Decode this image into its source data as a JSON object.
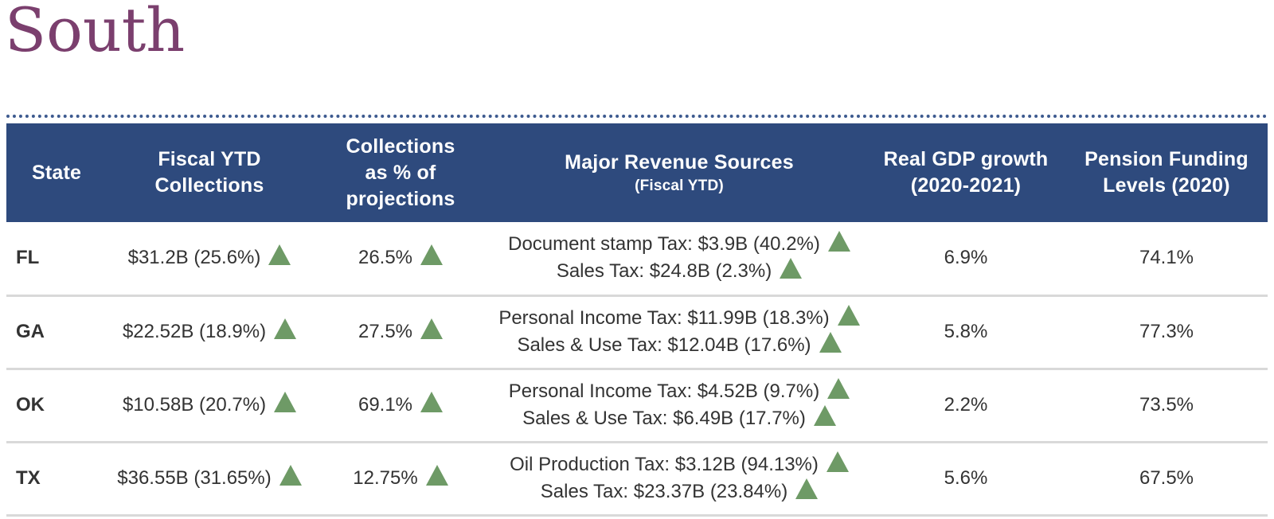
{
  "page": {
    "title": "South"
  },
  "colors": {
    "title": "#7b3f6e",
    "header_bg": "#2e4a7d",
    "up_arrow": "#6e9a66"
  },
  "table": {
    "headers": {
      "state": "State",
      "fiscal_ytd_1": "Fiscal YTD",
      "fiscal_ytd_2": "Collections",
      "collections_1": "Collections",
      "collections_2": "as % of",
      "collections_3": "projections",
      "revenue_main": "Major Revenue Sources",
      "revenue_sub": "(Fiscal YTD)",
      "gdp_1": "Real GDP growth",
      "gdp_2": "(2020-2021)",
      "pension_1": "Pension Funding",
      "pension_2": "Levels (2020)"
    },
    "rows": [
      {
        "state": "FL",
        "collections": "$31.2B (25.6%)",
        "pct_projections": "26.5%",
        "revenue_1": "Document stamp Tax: $3.9B (40.2%)",
        "revenue_2": "Sales Tax: $24.8B (2.3%)",
        "gdp": "6.9%",
        "pension": "74.1%"
      },
      {
        "state": "GA",
        "collections": "$22.52B (18.9%)",
        "pct_projections": "27.5%",
        "revenue_1": "Personal Income Tax: $11.99B (18.3%)",
        "revenue_2": "Sales & Use Tax: $12.04B (17.6%)",
        "gdp": "5.8%",
        "pension": "77.3%"
      },
      {
        "state": "OK",
        "collections": "$10.58B (20.7%)",
        "pct_projections": "69.1%",
        "revenue_1": "Personal Income Tax: $4.52B (9.7%)",
        "revenue_2": "Sales & Use Tax: $6.49B (17.7%)",
        "gdp": "2.2%",
        "pension": "73.5%"
      },
      {
        "state": "TX",
        "collections": "$36.55B (31.65%)",
        "pct_projections": "12.75%",
        "revenue_1": "Oil Production Tax: $3.12B (94.13%)",
        "revenue_2": "Sales Tax: $23.37B (23.84%)",
        "gdp": "5.6%",
        "pension": "67.5%"
      }
    ]
  }
}
